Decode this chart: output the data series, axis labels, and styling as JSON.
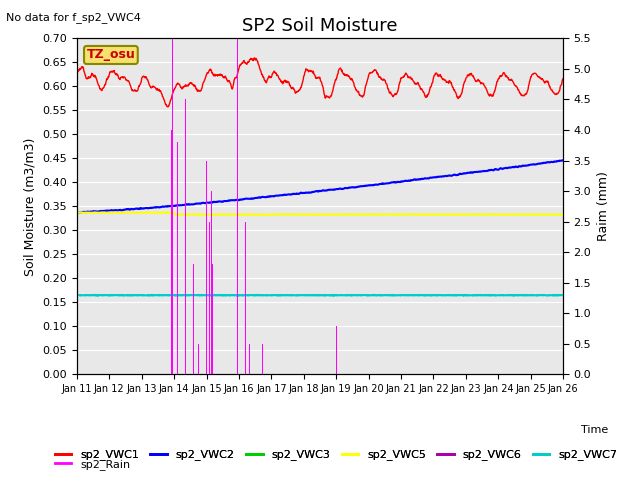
{
  "title": "SP2 Soil Moisture",
  "no_data_label": "No data for f_sp2_VWC4",
  "tz_label": "TZ_osu",
  "ylabel_left": "Soil Moisture (m3/m3)",
  "ylabel_right": "Raim (mm)",
  "xlabel": "Time",
  "ylim_left": [
    0.0,
    0.7
  ],
  "ylim_right": [
    0.0,
    5.5
  ],
  "xtick_labels": [
    "Jan 11",
    "Jan 12",
    "Jan 13",
    "Jan 14",
    "Jan 15",
    "Jan 16",
    "Jan 17",
    "Jan 18",
    "Jan 19",
    "Jan 20",
    "Jan 21",
    "Jan 22",
    "Jan 23",
    "Jan 24",
    "Jan 25",
    "Jan 26"
  ],
  "fig_bg_color": "#ffffff",
  "plot_bg_color": "#e8e8e8",
  "vwc1_color": "#ff0000",
  "vwc2_color": "#0000ff",
  "vwc3_color": "#00cc00",
  "vwc5_color": "#ffff00",
  "vwc6_color": "#aa00aa",
  "vwc7_color": "#00cccc",
  "rain_color": "#ff00ff",
  "grid_color": "#ffffff",
  "title_fontsize": 13,
  "axis_label_fontsize": 9,
  "tick_fontsize": 8,
  "legend_fontsize": 8
}
